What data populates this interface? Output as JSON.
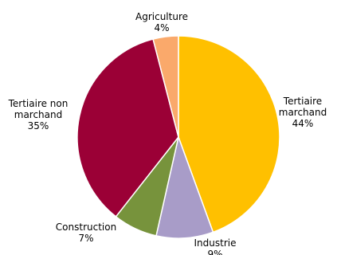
{
  "chart_data": {
    "type": "pie",
    "title": "",
    "start": "top, clockwise",
    "slices": [
      {
        "label": [
          "Tertiaire",
          "marchand"
        ],
        "value": 44,
        "value_label": "44%",
        "color": "#FFC000"
      },
      {
        "label": [
          "Industrie"
        ],
        "value": 9,
        "value_label": "9%",
        "color": "#A89CC8"
      },
      {
        "label": [
          "Construction"
        ],
        "value": 7,
        "value_label": "7%",
        "color": "#77933C"
      },
      {
        "label": [
          "Tertiaire non",
          "marchand"
        ],
        "value": 35,
        "value_label": "35%",
        "color": "#9B0036"
      },
      {
        "label": [
          "Agriculture"
        ],
        "value": 4,
        "value_label": "4%",
        "color": "#FAA96B"
      }
    ]
  }
}
